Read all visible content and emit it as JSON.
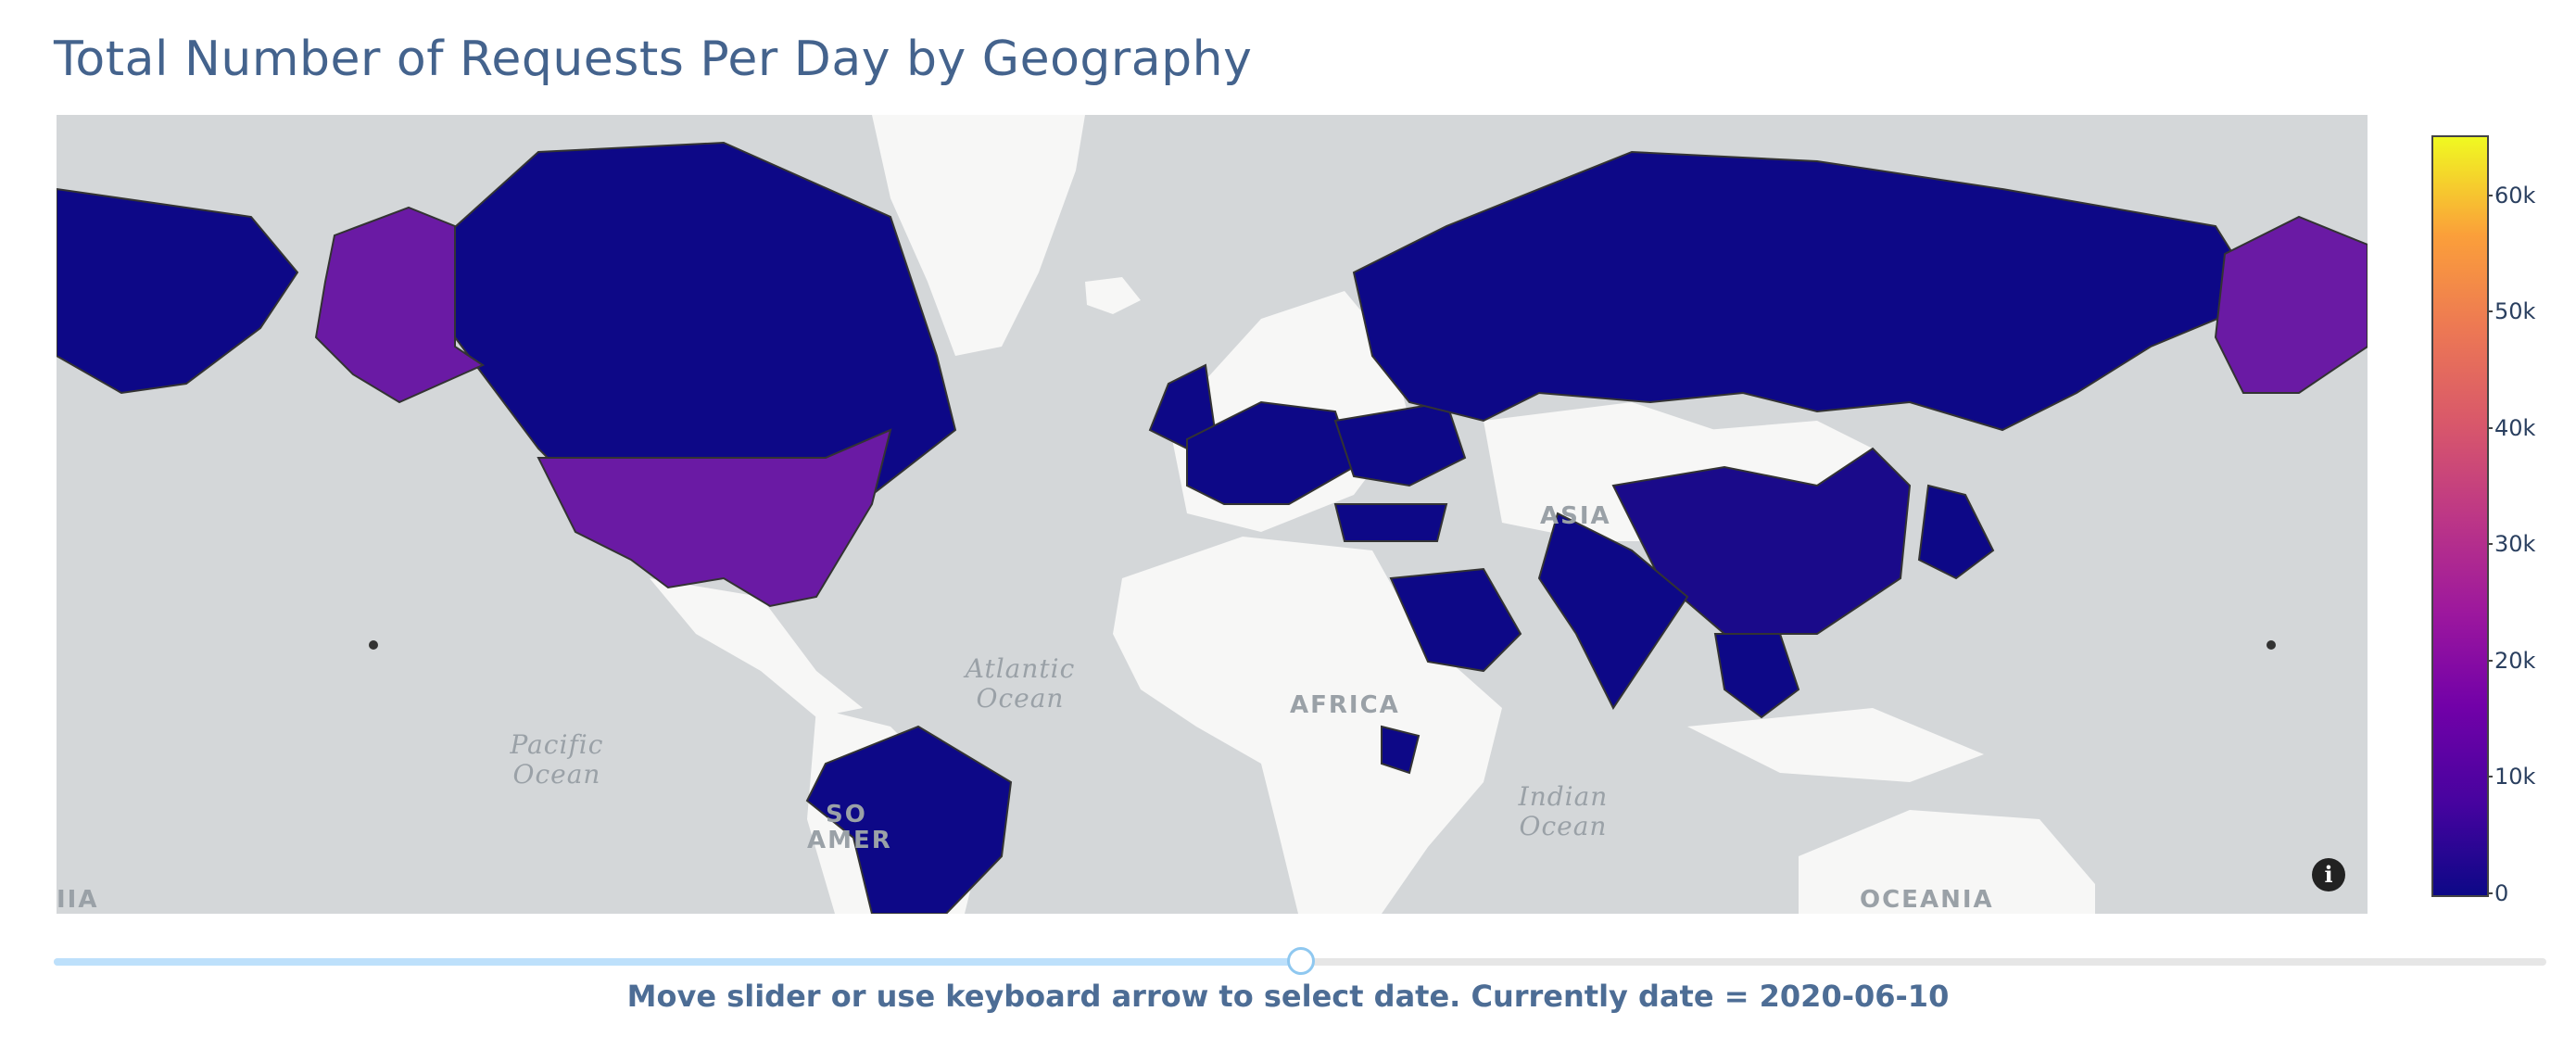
{
  "title": "Total Number of Requests Per Day by Geography",
  "map": {
    "type": "choropleth",
    "projection": "mercator",
    "base_map_labels": [
      "ASIA",
      "AFRICA",
      "OCEANIA",
      "SO",
      "AMER",
      "IIA"
    ],
    "ocean_labels": [
      {
        "line1": "Atlantic",
        "line2": "Ocean"
      },
      {
        "line1": "Pacific",
        "line2": "Ocean"
      },
      {
        "line1": "Indian",
        "line2": "Ocean"
      }
    ],
    "info_icon": "info-icon",
    "colors": {
      "land_no_data": "#f7f7f6",
      "ocean": "#d4d7d9",
      "low": "#0d0887",
      "mid": "#6a1aa4"
    },
    "highlighted_regions": [
      {
        "name": "United States",
        "level": "mid"
      },
      {
        "name": "Alaska",
        "level": "mid"
      },
      {
        "name": "Canada",
        "level": "low"
      },
      {
        "name": "Russia",
        "level": "low"
      },
      {
        "name": "China",
        "level": "low"
      },
      {
        "name": "India",
        "level": "low"
      },
      {
        "name": "Brazil",
        "level": "low"
      },
      {
        "name": "Saudi Arabia",
        "level": "low"
      },
      {
        "name": "Turkey",
        "level": "low"
      },
      {
        "name": "Japan",
        "level": "low"
      },
      {
        "name": "Kenya",
        "level": "low"
      }
    ]
  },
  "colorbar": {
    "colorscale": "plasma",
    "min": 0,
    "max": 65000,
    "ticks": [
      {
        "value": 60000,
        "label": "60k"
      },
      {
        "value": 50000,
        "label": "50k"
      },
      {
        "value": 40000,
        "label": "40k"
      },
      {
        "value": 30000,
        "label": "30k"
      },
      {
        "value": 20000,
        "label": "20k"
      },
      {
        "value": 10000,
        "label": "10k"
      },
      {
        "value": 0,
        "label": "0"
      }
    ]
  },
  "slider": {
    "position_fraction": 0.5,
    "caption_prefix": "Move slider or use keyboard arrow to select date. Currently date =",
    "current_date": "2020-06-10",
    "track_color": "#e6e6e6",
    "fill_color": "#bde0fb"
  }
}
